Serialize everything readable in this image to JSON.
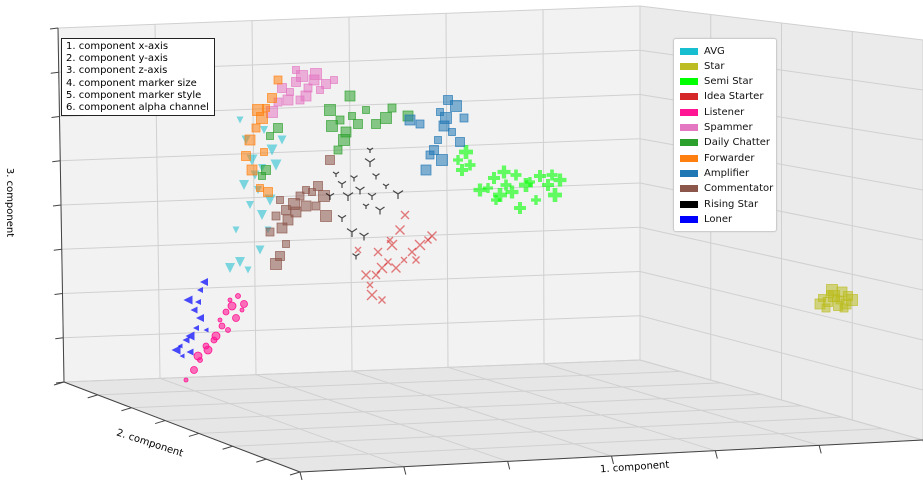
{
  "chart_data": {
    "type": "scatter",
    "projection": "3d",
    "xlabel": "1. component",
    "ylabel": "2. component",
    "zlabel": "3. component",
    "grid": true,
    "legend_position": "upper-right",
    "annotation_lines": [
      "1. component x-axis",
      "2. component y-axis",
      "3. component z-axis",
      "4. component marker size",
      "5. component marker style",
      "6. component alpha channel"
    ],
    "series": [
      {
        "name": "AVG",
        "color": "#17becf",
        "marker": "v",
        "points": [
          [
            240,
            120
          ],
          [
            246,
            140
          ],
          [
            252,
            160
          ],
          [
            258,
            190
          ],
          [
            262,
            215
          ],
          [
            268,
            230
          ],
          [
            255,
            175
          ],
          [
            272,
            150
          ],
          [
            250,
            205
          ],
          [
            244,
            185
          ],
          [
            236,
            230
          ],
          [
            260,
            250
          ],
          [
            276,
            165
          ],
          [
            264,
            130
          ],
          [
            240,
            262
          ],
          [
            248,
            270
          ],
          [
            282,
            140
          ],
          [
            270,
            200
          ],
          [
            262,
            168
          ],
          [
            230,
            268
          ]
        ]
      },
      {
        "name": "Star",
        "color": "#bcbd22",
        "marker": "s",
        "points": [
          [
            822,
            298
          ],
          [
            828,
            302
          ],
          [
            834,
            296
          ],
          [
            840,
            300
          ],
          [
            846,
            304
          ],
          [
            830,
            294
          ],
          [
            838,
            306
          ],
          [
            852,
            300
          ],
          [
            826,
            308
          ],
          [
            842,
            292
          ],
          [
            836,
            298
          ],
          [
            848,
            296
          ],
          [
            832,
            290
          ],
          [
            844,
            308
          ],
          [
            820,
            304
          ]
        ]
      },
      {
        "name": "Semi Star",
        "color": "#00ff00",
        "marker": "P",
        "points": [
          [
            488,
            188
          ],
          [
            494,
            178
          ],
          [
            500,
            195
          ],
          [
            506,
            185
          ],
          [
            512,
            192
          ],
          [
            496,
            200
          ],
          [
            520,
            208
          ],
          [
            526,
            185
          ],
          [
            516,
            175
          ],
          [
            504,
            172
          ],
          [
            530,
            182
          ],
          [
            548,
            185
          ],
          [
            555,
            195
          ],
          [
            552,
            175
          ],
          [
            560,
            180
          ],
          [
            458,
            160
          ],
          [
            462,
            170
          ],
          [
            466,
            152
          ],
          [
            470,
            165
          ],
          [
            480,
            190
          ],
          [
            536,
            200
          ],
          [
            540,
            176
          ]
        ]
      },
      {
        "name": "Idea Starter",
        "color": "#d62728",
        "marker": "x",
        "points": [
          [
            370,
            285
          ],
          [
            376,
            275
          ],
          [
            382,
            268
          ],
          [
            388,
            262
          ],
          [
            396,
            268
          ],
          [
            404,
            260
          ],
          [
            412,
            252
          ],
          [
            420,
            245
          ],
          [
            428,
            240
          ],
          [
            400,
            230
          ],
          [
            390,
            240
          ],
          [
            378,
            252
          ],
          [
            372,
            295
          ],
          [
            382,
            300
          ],
          [
            366,
            275
          ],
          [
            358,
            250
          ],
          [
            405,
            215
          ],
          [
            392,
            245
          ],
          [
            416,
            260
          ],
          [
            432,
            236
          ]
        ]
      },
      {
        "name": "Listener",
        "color": "#ff1493",
        "marker": "o",
        "points": [
          [
            220,
            320
          ],
          [
            226,
            312
          ],
          [
            232,
            306
          ],
          [
            228,
            330
          ],
          [
            236,
            318
          ],
          [
            242,
            310
          ],
          [
            214,
            340
          ],
          [
            208,
            350
          ],
          [
            200,
            360
          ],
          [
            194,
            370
          ],
          [
            186,
            380
          ],
          [
            222,
            326
          ],
          [
            216,
            336
          ],
          [
            238,
            296
          ],
          [
            244,
            304
          ],
          [
            230,
            300
          ],
          [
            206,
            346
          ],
          [
            198,
            356
          ]
        ]
      },
      {
        "name": "Spammer",
        "color": "#e377c2",
        "marker": "s",
        "points": [
          [
            290,
            92
          ],
          [
            296,
            82
          ],
          [
            302,
            76
          ],
          [
            308,
            88
          ],
          [
            314,
            80
          ],
          [
            320,
            90
          ],
          [
            326,
            84
          ],
          [
            316,
            74
          ],
          [
            300,
            100
          ],
          [
            288,
            100
          ],
          [
            296,
            70
          ],
          [
            282,
            88
          ],
          [
            272,
            112
          ],
          [
            278,
            102
          ],
          [
            306,
            96
          ],
          [
            334,
            80
          ]
        ]
      },
      {
        "name": "Daily Chatter",
        "color": "#2ca02c",
        "marker": "s",
        "points": [
          [
            270,
            136
          ],
          [
            278,
            128
          ],
          [
            332,
            126
          ],
          [
            340,
            120
          ],
          [
            346,
            132
          ],
          [
            352,
            116
          ],
          [
            358,
            124
          ],
          [
            344,
            140
          ],
          [
            338,
            150
          ],
          [
            350,
            96
          ],
          [
            366,
            110
          ],
          [
            376,
            124
          ],
          [
            386,
            118
          ],
          [
            392,
            108
          ],
          [
            408,
            116
          ],
          [
            262,
            176
          ],
          [
            266,
            170
          ],
          [
            330,
            110
          ]
        ]
      },
      {
        "name": "Forwarder",
        "color": "#ff7f0e",
        "marker": "s",
        "points": [
          [
            266,
            108
          ],
          [
            272,
            98
          ],
          [
            262,
            118
          ],
          [
            256,
            128
          ],
          [
            250,
            140
          ],
          [
            264,
            152
          ],
          [
            246,
            156
          ],
          [
            258,
            110
          ],
          [
            278,
            80
          ],
          [
            252,
            170
          ],
          [
            260,
            188
          ],
          [
            268,
            192
          ]
        ]
      },
      {
        "name": "Amplifier",
        "color": "#1f77b4",
        "marker": "s",
        "points": [
          [
            440,
            112
          ],
          [
            448,
            100
          ],
          [
            456,
            106
          ],
          [
            464,
            118
          ],
          [
            444,
            126
          ],
          [
            438,
            140
          ],
          [
            434,
            150
          ],
          [
            442,
            160
          ],
          [
            430,
            155
          ],
          [
            426,
            170
          ],
          [
            452,
            132
          ],
          [
            460,
            142
          ],
          [
            446,
            118
          ],
          [
            420,
            124
          ],
          [
            410,
            120
          ]
        ]
      },
      {
        "name": "Commentator",
        "color": "#8c564b",
        "marker": "s",
        "points": [
          [
            280,
            200
          ],
          [
            286,
            210
          ],
          [
            294,
            204
          ],
          [
            300,
            196
          ],
          [
            306,
            206
          ],
          [
            312,
            192
          ],
          [
            318,
            186
          ],
          [
            324,
            196
          ],
          [
            276,
            216
          ],
          [
            282,
            228
          ],
          [
            286,
            244
          ],
          [
            280,
            256
          ],
          [
            276,
            264
          ],
          [
            270,
            232
          ],
          [
            288,
            220
          ],
          [
            306,
            190
          ],
          [
            330,
            160
          ],
          [
            326,
            216
          ],
          [
            316,
            206
          ],
          [
            296,
            212
          ]
        ]
      },
      {
        "name": "Rising Star",
        "color": "#000000",
        "marker": "1",
        "points": [
          [
            336,
            174
          ],
          [
            342,
            184
          ],
          [
            348,
            196
          ],
          [
            354,
            178
          ],
          [
            360,
            190
          ],
          [
            366,
            206
          ],
          [
            372,
            196
          ],
          [
            370,
            162
          ],
          [
            376,
            176
          ],
          [
            380,
            210
          ],
          [
            386,
            186
          ],
          [
            342,
            218
          ],
          [
            352,
            232
          ],
          [
            356,
            256
          ],
          [
            364,
            236
          ],
          [
            370,
            150
          ],
          [
            330,
            196
          ],
          [
            398,
            194
          ]
        ]
      },
      {
        "name": "Loner",
        "color": "#0000ff",
        "marker": "<",
        "points": [
          [
            180,
            346
          ],
          [
            186,
            340
          ],
          [
            190,
            336
          ],
          [
            196,
            328
          ],
          [
            200,
            318
          ],
          [
            206,
            330
          ],
          [
            194,
            310
          ],
          [
            188,
            300
          ],
          [
            200,
            290
          ],
          [
            204,
            282
          ],
          [
            182,
            356
          ],
          [
            190,
            352
          ],
          [
            176,
            350
          ],
          [
            198,
            302
          ]
        ]
      }
    ]
  }
}
